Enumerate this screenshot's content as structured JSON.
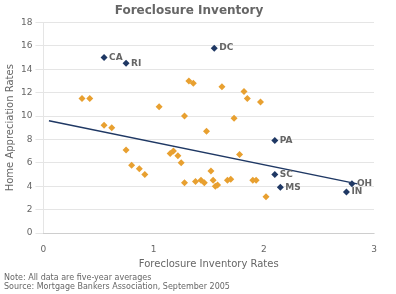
{
  "chart_data": {
    "type": "scatter",
    "title": "Foreclosure Inventory",
    "xlabel": "Foreclosure Inventory Rates",
    "ylabel": "Home Appreciation Rates",
    "notes": [
      "Note: All data are five-year averages",
      "Source: Mortgage Bankers Association, September 2005"
    ],
    "xlim": [
      0,
      3
    ],
    "ylim": [
      0,
      18
    ],
    "xticks": [
      0,
      1,
      2,
      3
    ],
    "yticks": [
      0,
      2,
      4,
      6,
      8,
      10,
      12,
      14,
      16,
      18
    ],
    "grid": "y",
    "series": [
      {
        "type": "scatter",
        "color": "#e8a030",
        "marker": "diamond",
        "x": [
          0.35,
          0.42,
          0.55,
          0.62,
          0.75,
          0.8,
          0.87,
          0.92,
          1.05,
          1.15,
          1.18,
          1.22,
          1.25,
          1.28,
          1.28,
          1.32,
          1.36,
          1.38,
          1.43,
          1.46,
          1.48,
          1.52,
          1.54,
          1.56,
          1.58,
          1.62,
          1.67,
          1.7,
          1.73,
          1.78,
          1.82,
          1.85,
          1.9,
          1.93,
          1.97,
          2.02
        ],
        "values": [
          11.5,
          11.5,
          9.2,
          9.0,
          7.1,
          5.8,
          5.5,
          5.0,
          10.8,
          6.8,
          7.0,
          6.6,
          6.0,
          10.0,
          4.3,
          13.0,
          12.8,
          4.4,
          4.5,
          4.3,
          8.7,
          5.3,
          4.5,
          4.0,
          4.1,
          12.5,
          4.5,
          4.6,
          9.8,
          6.7,
          12.1,
          11.5,
          4.5,
          4.5,
          11.2,
          3.1
        ]
      },
      {
        "type": "scatter",
        "color": "#1f3864",
        "marker": "diamond",
        "x": [
          0.55,
          0.75,
          1.55,
          2.1,
          2.1,
          2.15,
          2.75,
          2.8
        ],
        "values": [
          15.0,
          14.5,
          15.8,
          7.9,
          5.0,
          3.9,
          3.5,
          4.2
        ]
      },
      {
        "type": "line",
        "color": "#1f3864",
        "line_style": "solid",
        "x": [
          0.05,
          2.85
        ],
        "values": [
          9.6,
          4.2
        ]
      }
    ],
    "annotations": [
      {
        "x": 0.55,
        "y": 15.0,
        "text": "CA"
      },
      {
        "x": 0.75,
        "y": 14.5,
        "text": "RI"
      },
      {
        "x": 1.55,
        "y": 15.8,
        "text": "DC"
      },
      {
        "x": 2.1,
        "y": 7.9,
        "text": "PA"
      },
      {
        "x": 2.1,
        "y": 5.0,
        "text": "SC"
      },
      {
        "x": 2.15,
        "y": 3.9,
        "text": "MS"
      },
      {
        "x": 2.75,
        "y": 3.5,
        "text": "IN"
      },
      {
        "x": 2.8,
        "y": 4.2,
        "text": "OH"
      }
    ]
  }
}
